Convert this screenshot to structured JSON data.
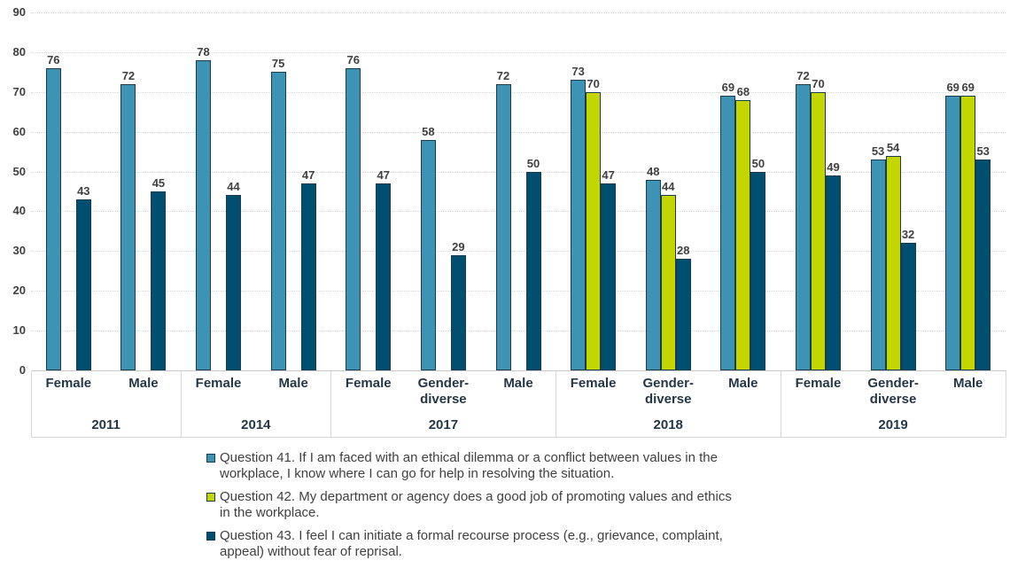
{
  "chart_data": {
    "type": "bar",
    "title": "",
    "xlabel": "",
    "ylabel": "",
    "ylim": [
      0,
      90
    ],
    "y_ticks": [
      0,
      10,
      20,
      30,
      40,
      50,
      60,
      70,
      80,
      90
    ],
    "grid": "horizontal-dotted",
    "legend_position": "bottom",
    "series": [
      {
        "id": "question-41",
        "color": "#3D93B3",
        "label": "Question 41. If I am faced with an ethical dilemma or a conflict between values in the\nworkplace, I know where I can go for help in resolving the situation."
      },
      {
        "id": "question-42",
        "color": "#C4D600",
        "label": "Question 42. My department or agency does a good job of promoting values and ethics\nin the workplace."
      },
      {
        "id": "question-43",
        "color": "#004F71",
        "label": "Question 43. I feel I can initiate a formal recourse process (e.g., grievance, complaint,\nappeal) without fear of reprisal."
      }
    ],
    "groups": [
      {
        "year": "2011",
        "categories": [
          {
            "label": "Female",
            "values": [
              76,
              null,
              43
            ]
          },
          {
            "label": "Male",
            "values": [
              72,
              null,
              45
            ]
          }
        ]
      },
      {
        "year": "2014",
        "categories": [
          {
            "label": "Female",
            "values": [
              78,
              null,
              44
            ]
          },
          {
            "label": "Male",
            "values": [
              75,
              null,
              47
            ]
          }
        ]
      },
      {
        "year": "2017",
        "categories": [
          {
            "label": "Female",
            "values": [
              76,
              null,
              47
            ]
          },
          {
            "label": "Gender-diverse",
            "values": [
              58,
              null,
              29
            ]
          },
          {
            "label": "Male",
            "values": [
              72,
              null,
              50
            ]
          }
        ]
      },
      {
        "year": "2018",
        "categories": [
          {
            "label": "Female",
            "values": [
              73,
              70,
              47
            ]
          },
          {
            "label": "Gender-diverse",
            "values": [
              48,
              44,
              28
            ]
          },
          {
            "label": "Male",
            "values": [
              69,
              68,
              50
            ]
          }
        ]
      },
      {
        "year": "2019",
        "categories": [
          {
            "label": "Female",
            "values": [
              72,
              70,
              49
            ]
          },
          {
            "label": "Gender-diverse",
            "values": [
              53,
              54,
              32
            ]
          },
          {
            "label": "Male",
            "values": [
              69,
              69,
              53
            ]
          }
        ]
      }
    ]
  }
}
